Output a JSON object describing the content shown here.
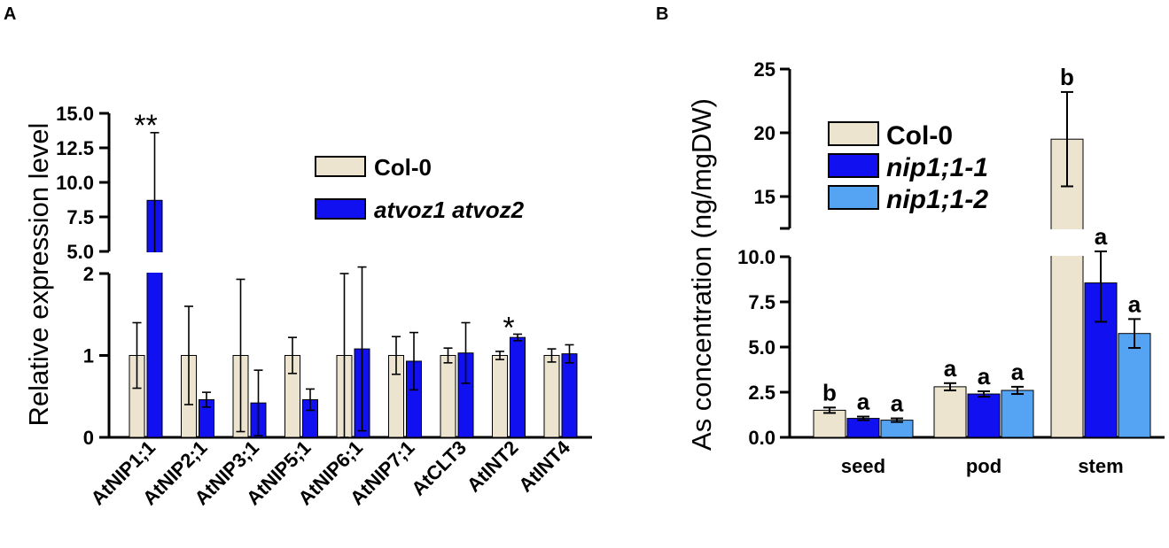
{
  "panels": {
    "a": "A",
    "b": "B"
  },
  "colors": {
    "col0": "#ece4cf",
    "dark_blue": "#1010f0",
    "light_blue": "#55a4f4",
    "axis": "#000000"
  },
  "chart_data": [
    {
      "panel": "A",
      "type": "bar",
      "ylabel": "Relative expression level",
      "y_axis_break": {
        "lower_range": [
          0,
          2
        ],
        "upper_range": [
          5,
          15
        ]
      },
      "lower_ticks": [
        "0",
        "1",
        "2"
      ],
      "upper_ticks": [
        "5.0",
        "7.5",
        "10.0",
        "12.5",
        "15.0"
      ],
      "categories": [
        "AtNIP1;1",
        "AtNIP2;1",
        "AtNIP3;1",
        "AtNIP5;1",
        "AtNIP6;1",
        "AtNIP7;1",
        "AtCLT3",
        "AtINT2",
        "AtINT4"
      ],
      "series": [
        {
          "name": "Col-0",
          "values": [
            1.0,
            1.0,
            1.0,
            1.0,
            1.0,
            1.0,
            1.0,
            1.0,
            1.0
          ],
          "errors": [
            0.4,
            0.6,
            0.93,
            0.22,
            1.0,
            0.23,
            0.09,
            0.05,
            0.08
          ]
        },
        {
          "name": "atvoz1 atvoz2",
          "values": [
            8.7,
            0.46,
            0.42,
            0.46,
            1.08,
            0.93,
            1.03,
            1.22,
            1.02
          ],
          "errors": [
            4.9,
            0.09,
            0.4,
            0.13,
            1.0,
            0.35,
            0.37,
            0.04,
            0.11
          ]
        }
      ],
      "significance": [
        {
          "category": "AtNIP1;1",
          "label": "**"
        },
        {
          "category": "AtINT2",
          "label": "*"
        }
      ]
    },
    {
      "panel": "B",
      "type": "bar",
      "ylabel": "As concentration (ng/mgDW)",
      "y_axis_break": {
        "lower_range": [
          0,
          10
        ],
        "upper_range": [
          12.5,
          25
        ]
      },
      "lower_ticks": [
        "0.0",
        "2.5",
        "5.0",
        "7.5",
        "10.0"
      ],
      "upper_ticks": [
        "15",
        "20",
        "25"
      ],
      "categories": [
        "seed",
        "pod",
        "stem"
      ],
      "series": [
        {
          "name": "Col-0",
          "values": [
            1.5,
            2.8,
            19.5
          ],
          "errors": [
            0.15,
            0.2,
            3.7
          ]
        },
        {
          "name": "nip1;1-1",
          "values": [
            1.05,
            2.4,
            8.55
          ],
          "errors": [
            0.1,
            0.15,
            2.15
          ]
        },
        {
          "name": "nip1;1-2",
          "values": [
            0.95,
            2.6,
            5.75
          ],
          "errors": [
            0.1,
            0.2,
            0.8
          ]
        }
      ],
      "letters": [
        [
          "b",
          "a",
          "a"
        ],
        [
          "a",
          "a",
          "a"
        ],
        [
          "b",
          "a",
          "a"
        ]
      ]
    }
  ]
}
